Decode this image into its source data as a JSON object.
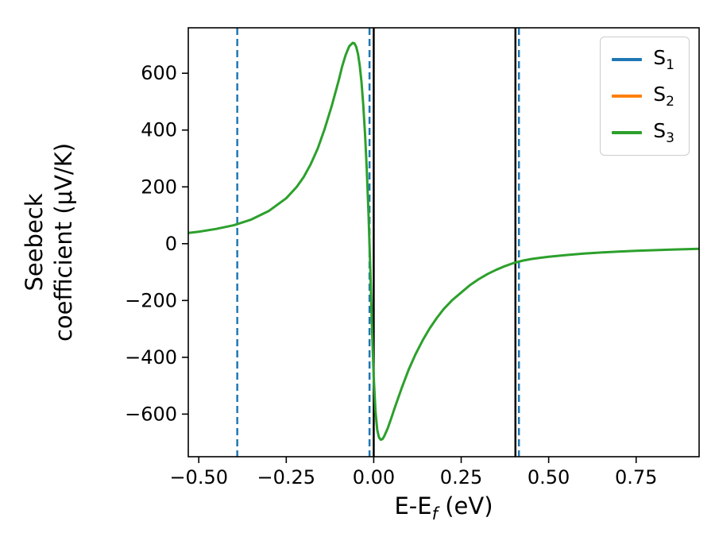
{
  "figure": {
    "background": "#ffffff"
  },
  "axes": {
    "xlabel": {
      "main": "E-E",
      "sub": "f",
      "unit": " (eV)"
    },
    "ylabel": {
      "line1": "Seebeck",
      "line2": "coefficient  (μV/K)"
    },
    "frame_color": "#000000",
    "tick_color": "#000000"
  },
  "chart_data": {
    "type": "line",
    "title": "",
    "xlabel": "E-E_f (eV)",
    "ylabel": "Seebeck coefficient (μV/K)",
    "xlim": [
      -0.53,
      0.93
    ],
    "ylim": [
      -750,
      760
    ],
    "xticks": [
      -0.5,
      -0.25,
      0,
      0.25,
      0.5,
      0.75
    ],
    "xtick_labels": [
      "−0.50",
      "−0.25",
      "0.00",
      "0.25",
      "0.50",
      "0.75"
    ],
    "yticks": [
      -600,
      -400,
      -200,
      0,
      200,
      400,
      600
    ],
    "ytick_labels": [
      "−600",
      "−400",
      "−200",
      "0",
      "200",
      "400",
      "600"
    ],
    "grid": false,
    "legend_position": "upper right",
    "series": [
      {
        "name": "S3",
        "type": "curve",
        "color": "#2ca02c",
        "linewidth": 3,
        "points": [
          [
            -0.53,
            38
          ],
          [
            -0.5,
            42
          ],
          [
            -0.45,
            52
          ],
          [
            -0.4,
            65
          ],
          [
            -0.35,
            85
          ],
          [
            -0.3,
            115
          ],
          [
            -0.25,
            160
          ],
          [
            -0.22,
            200
          ],
          [
            -0.2,
            235
          ],
          [
            -0.18,
            280
          ],
          [
            -0.16,
            335
          ],
          [
            -0.14,
            405
          ],
          [
            -0.12,
            485
          ],
          [
            -0.1,
            575
          ],
          [
            -0.09,
            625
          ],
          [
            -0.08,
            665
          ],
          [
            -0.07,
            695
          ],
          [
            -0.06,
            707
          ],
          [
            -0.055,
            705
          ],
          [
            -0.05,
            693
          ],
          [
            -0.045,
            668
          ],
          [
            -0.04,
            628
          ],
          [
            -0.035,
            570
          ],
          [
            -0.03,
            490
          ],
          [
            -0.025,
            390
          ],
          [
            -0.02,
            265
          ],
          [
            -0.015,
            110
          ],
          [
            -0.01,
            -80
          ],
          [
            -0.005,
            -290
          ],
          [
            0.0,
            -470
          ],
          [
            0.005,
            -590
          ],
          [
            0.01,
            -655
          ],
          [
            0.015,
            -682
          ],
          [
            0.02,
            -690
          ],
          [
            0.025,
            -688
          ],
          [
            0.03,
            -678
          ],
          [
            0.04,
            -650
          ],
          [
            0.05,
            -615
          ],
          [
            0.06,
            -578
          ],
          [
            0.08,
            -508
          ],
          [
            0.1,
            -443
          ],
          [
            0.12,
            -388
          ],
          [
            0.14,
            -340
          ],
          [
            0.16,
            -298
          ],
          [
            0.18,
            -262
          ],
          [
            0.2,
            -230
          ],
          [
            0.225,
            -198
          ],
          [
            0.25,
            -172
          ],
          [
            0.275,
            -146
          ],
          [
            0.3,
            -125
          ],
          [
            0.325,
            -107
          ],
          [
            0.35,
            -92
          ],
          [
            0.375,
            -79
          ],
          [
            0.4,
            -68
          ],
          [
            0.425,
            -60
          ],
          [
            0.45,
            -54
          ],
          [
            0.475,
            -50
          ],
          [
            0.5,
            -46
          ],
          [
            0.55,
            -40
          ],
          [
            0.6,
            -35
          ],
          [
            0.65,
            -31
          ],
          [
            0.7,
            -28
          ],
          [
            0.75,
            -25
          ],
          [
            0.8,
            -23
          ],
          [
            0.85,
            -21
          ],
          [
            0.9,
            -19
          ],
          [
            0.93,
            -18
          ]
        ]
      }
    ],
    "vlines": [
      {
        "color": "#1f77b4",
        "style": "dashed",
        "linewidth": 2.5,
        "x": [
          -0.39,
          -0.012,
          0.415
        ]
      },
      {
        "color": "#000000",
        "style": "solid",
        "linewidth": 2.5,
        "x": [
          0.0,
          0.405
        ]
      }
    ]
  },
  "legend": {
    "entries": [
      {
        "id": "s1",
        "label_main": "S",
        "label_sub": "1",
        "color": "#1f77b4"
      },
      {
        "id": "s2",
        "label_main": "S",
        "label_sub": "2",
        "color": "#ff7f0e"
      },
      {
        "id": "s3",
        "label_main": "S",
        "label_sub": "3",
        "color": "#2ca02c"
      }
    ]
  }
}
